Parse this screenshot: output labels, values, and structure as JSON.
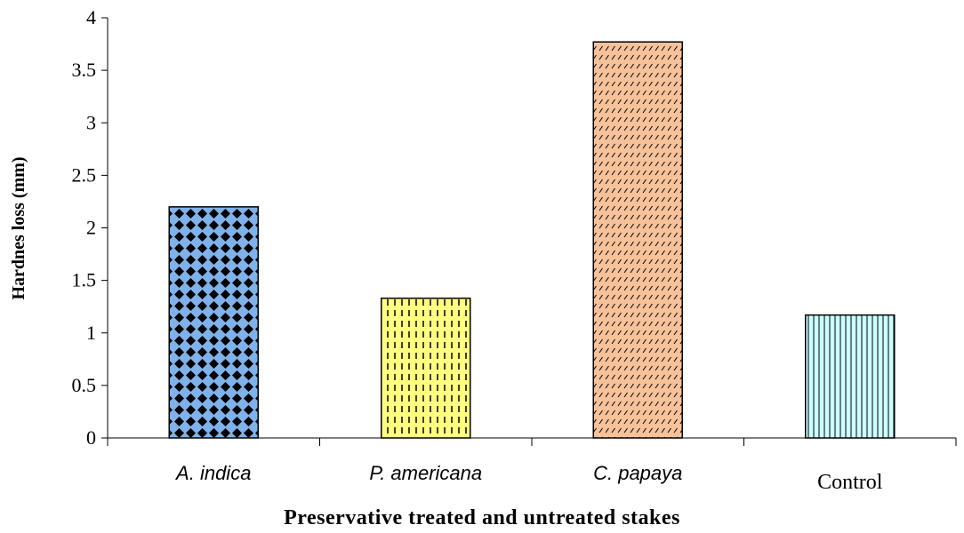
{
  "chart_data": {
    "type": "bar",
    "categories": [
      "A. indica",
      "P. americana",
      "C. papaya",
      "Control"
    ],
    "category_styles": [
      "italic",
      "italic",
      "italic",
      "normal"
    ],
    "values": [
      2.2,
      1.33,
      3.77,
      1.17
    ],
    "bar_colors": [
      "#7fb2ea",
      "#ffff80",
      "#f7c29a",
      "#ccffff"
    ],
    "bar_patterns": [
      "diamond-lattice",
      "short-vertical-dashes",
      "diagonal-dashes",
      "vertical-lines"
    ],
    "title": "",
    "xlabel": "Preservative treated and untreated stakes",
    "ylabel": "Hardnes loss (mm)",
    "ylim": [
      0,
      4
    ],
    "yticks": [
      "0",
      "0.5",
      "1",
      "1.5",
      "2",
      "2.5",
      "3",
      "3.5",
      "4"
    ],
    "grid": false,
    "legend": "none"
  }
}
